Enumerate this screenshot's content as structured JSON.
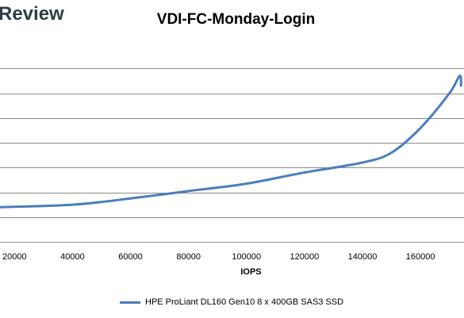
{
  "brand": {
    "text": "Review"
  },
  "chart_data": {
    "type": "line",
    "title": "VDI-FC-Monday-Login",
    "xlabel": "IOPS",
    "ylabel": "",
    "x_ticks": [
      20000,
      40000,
      60000,
      80000,
      100000,
      120000,
      140000,
      160000
    ],
    "xlim": [
      15000,
      175000
    ],
    "ylim": [
      0,
      8
    ],
    "grid": "horizontal",
    "legend_position": "bottom",
    "series": [
      {
        "name": "HPE ProLiant DL160 Gen10 8 x 400GB SAS3 SSD",
        "color": "#4a7ebb",
        "x": [
          15000,
          40000,
          60000,
          80000,
          100000,
          120000,
          140000,
          150000,
          160000,
          170000,
          173500,
          174000
        ],
        "y": [
          1.4,
          1.5,
          1.75,
          2.05,
          2.35,
          2.8,
          3.2,
          3.6,
          4.6,
          6.0,
          6.7,
          6.3
        ]
      }
    ]
  }
}
